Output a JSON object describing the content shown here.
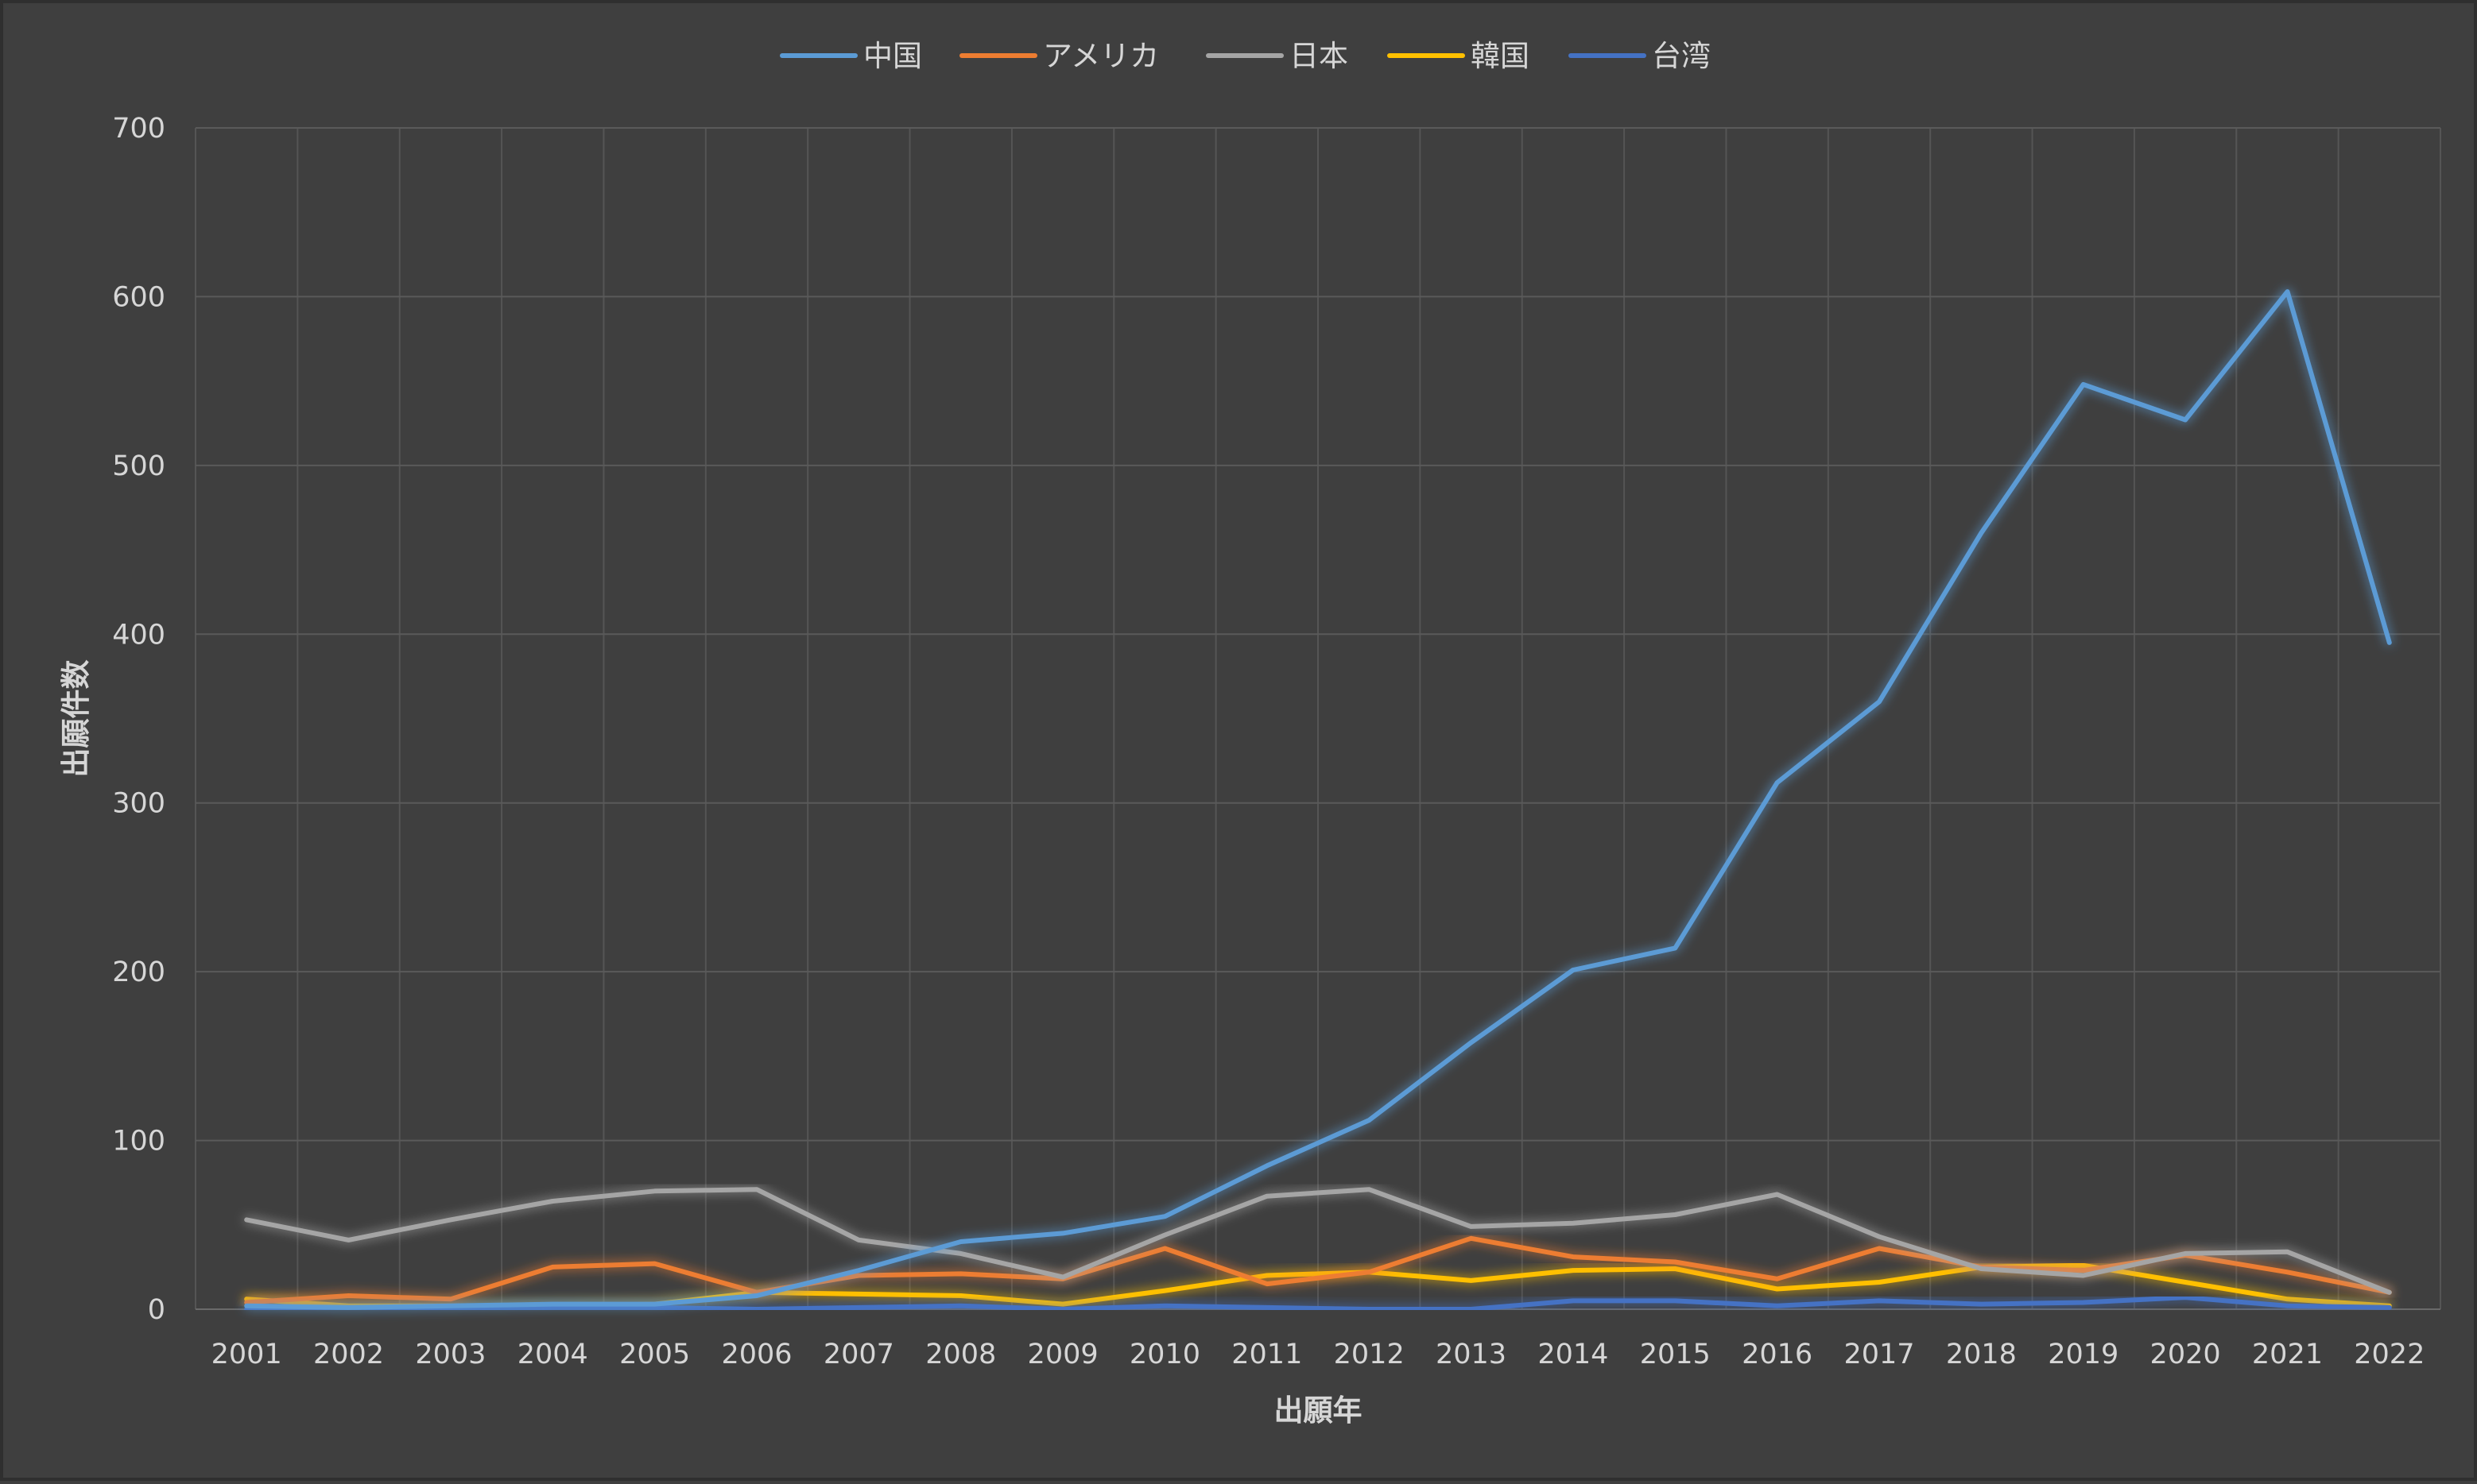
{
  "chart_data": {
    "type": "line",
    "title": "",
    "xlabel": "出願年",
    "ylabel": "出願件数",
    "ylim": [
      0,
      700
    ],
    "yticks": [
      0,
      100,
      200,
      300,
      400,
      500,
      600,
      700
    ],
    "grid": true,
    "legend_position": "top-center",
    "categories": [
      "2001",
      "2002",
      "2003",
      "2004",
      "2005",
      "2006",
      "2007",
      "2008",
      "2009",
      "2010",
      "2011",
      "2012",
      "2013",
      "2014",
      "2015",
      "2016",
      "2017",
      "2018",
      "2019",
      "2020",
      "2021",
      "2022"
    ],
    "series": [
      {
        "name": "中国",
        "color": "#5b9bd5",
        "values": [
          2,
          1,
          2,
          3,
          3,
          8,
          23,
          40,
          45,
          55,
          85,
          112,
          158,
          201,
          214,
          312,
          360,
          460,
          548,
          527,
          603,
          395
        ]
      },
      {
        "name": "アメリカ",
        "color": "#ed7d31",
        "values": [
          4,
          8,
          6,
          25,
          27,
          10,
          20,
          21,
          18,
          36,
          15,
          22,
          42,
          31,
          28,
          18,
          36,
          25,
          23,
          32,
          22,
          10
        ]
      },
      {
        "name": "日本",
        "color": "#a5a5a5",
        "values": [
          53,
          41,
          53,
          64,
          70,
          71,
          41,
          33,
          19,
          44,
          67,
          71,
          49,
          51,
          56,
          68,
          43,
          24,
          20,
          33,
          34,
          10
        ]
      },
      {
        "name": "韓国",
        "color": "#ffc000",
        "values": [
          6,
          2,
          2,
          2,
          3,
          10,
          9,
          8,
          3,
          11,
          20,
          22,
          17,
          23,
          24,
          12,
          16,
          25,
          26,
          16,
          6,
          2
        ]
      },
      {
        "name": "台湾",
        "color": "#4472c4",
        "values": [
          0,
          0,
          0,
          1,
          1,
          0,
          1,
          2,
          0,
          2,
          1,
          0,
          0,
          5,
          5,
          2,
          5,
          3,
          4,
          7,
          2,
          1
        ]
      }
    ]
  }
}
